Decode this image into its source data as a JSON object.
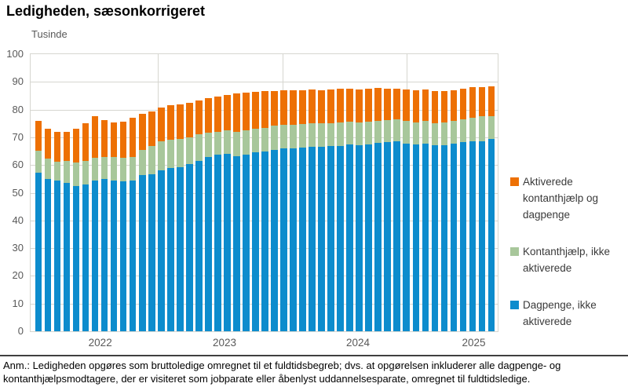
{
  "title": "Ledigheden, sæsonkorrigeret",
  "y_axis": {
    "unit_label": "Tusinde",
    "ticks": [
      0,
      10,
      20,
      30,
      40,
      50,
      60,
      70,
      80,
      90,
      100
    ],
    "max": 100
  },
  "x_axis": {
    "year_labels": [
      "2022",
      "2023",
      "2024",
      "2025"
    ]
  },
  "legend": [
    {
      "label": "Aktiverede kontanthjælp og dagpenge",
      "color": "#ed7004"
    },
    {
      "label": "Kontanthjælp, ikke aktiverede",
      "color": "#a8c79b"
    },
    {
      "label": "Dagpenge, ikke aktiverede",
      "color": "#0d8ccd"
    }
  ],
  "footnote": "Anm.: Ledigheden opgøres som bruttoledige omregnet til et fuldtidsbegreb; dvs. at opgørelsen inkluderer alle dagpenge- og kontanthjælpsmodtagere, der er visiteret som jobparate eller åbenlyst uddannelsesparate, omregnet til fuldtidsledige.",
  "chart_data": {
    "type": "bar",
    "stacked": true,
    "title": "Ledigheden, sæsonkorrigeret",
    "ylabel": "Tusinde",
    "ylim": [
      0,
      100
    ],
    "y_ticks": [
      0,
      10,
      20,
      30,
      40,
      50,
      60,
      70,
      80,
      90,
      100
    ],
    "grid": true,
    "legend_position": "right",
    "n_bars": 49,
    "frequency": "monthly",
    "year_sections": [
      {
        "label": "2022",
        "bars": 13
      },
      {
        "label": "2023",
        "bars": 13
      },
      {
        "label": "2024",
        "bars": 13
      },
      {
        "label": "2025",
        "bars": 10
      }
    ],
    "series": [
      {
        "name": "Dagpenge, ikke aktiverede",
        "color": "#0d8ccd",
        "stack_order": 1,
        "values": [
          57.3,
          54.9,
          54.3,
          53.5,
          52.4,
          53.0,
          54.3,
          54.9,
          54.3,
          54.0,
          54.3,
          56.3,
          56.8,
          58.2,
          58.9,
          59.3,
          60.3,
          61.5,
          62.9,
          63.7,
          64.0,
          63.2,
          63.8,
          64.6,
          65.0,
          65.4,
          65.9,
          66.0,
          66.3,
          66.5,
          66.6,
          66.8,
          67.0,
          67.3,
          67.2,
          67.5,
          68.0,
          68.3,
          68.5,
          67.8,
          67.5,
          67.8,
          67.2,
          67.1,
          67.6,
          68.3,
          68.5,
          68.7,
          69.3
        ]
      },
      {
        "name": "Kontanthjælp, ikke aktiverede",
        "color": "#a8c79b",
        "stack_order": 2,
        "values": [
          7.9,
          7.5,
          6.9,
          8.0,
          8.6,
          8.5,
          8.2,
          8.1,
          8.5,
          8.5,
          8.5,
          9.2,
          10.0,
          10.3,
          10.1,
          10.2,
          9.7,
          9.7,
          8.9,
          8.4,
          8.5,
          8.9,
          8.7,
          8.4,
          8.4,
          8.8,
          8.6,
          8.6,
          8.5,
          8.5,
          8.4,
          8.4,
          8.4,
          8.3,
          8.3,
          8.2,
          8.0,
          7.9,
          7.9,
          8.0,
          8.0,
          8.0,
          8.0,
          8.4,
          8.3,
          8.2,
          8.5,
          8.8,
          8.4
        ]
      },
      {
        "name": "Aktiverede kontanthjælp og dagpenge",
        "color": "#ed7004",
        "stack_order": 3,
        "values": [
          10.8,
          10.6,
          10.8,
          10.5,
          12.0,
          13.7,
          15.0,
          13.2,
          12.7,
          13.2,
          14.2,
          12.9,
          12.4,
          12.3,
          12.5,
          12.5,
          12.5,
          12.0,
          12.2,
          12.5,
          12.7,
          13.7,
          13.7,
          13.5,
          13.3,
          12.6,
          12.5,
          12.3,
          12.2,
          12.2,
          12.0,
          12.1,
          12.1,
          12.0,
          11.9,
          11.9,
          11.7,
          11.3,
          11.2,
          11.6,
          11.5,
          11.5,
          11.6,
          11.3,
          11.1,
          11.0,
          11.0,
          10.6,
          10.7
        ]
      }
    ]
  }
}
